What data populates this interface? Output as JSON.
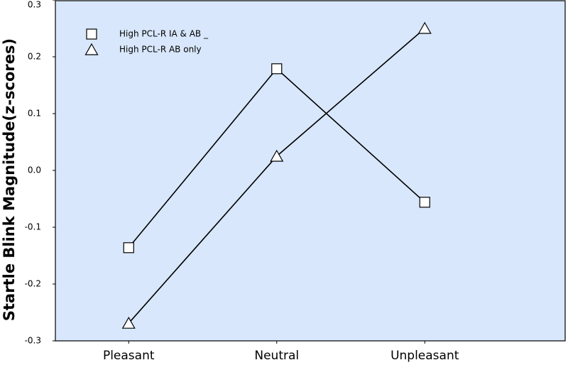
{
  "chart_data": {
    "type": "line",
    "y_label": "Startle Blink Magnitude(z-scores)",
    "categories": [
      "Pleasant",
      "Neutral",
      "Unpleasant"
    ],
    "series": [
      {
        "name": "High PCL-R IA & AB _",
        "color": "#000000",
        "marker": "square",
        "values": [
          -0.136,
          0.179,
          -0.056
        ]
      },
      {
        "name": "High PCL-R AB only",
        "color": "#000000",
        "marker": "triangle",
        "values": [
          -0.269,
          0.025,
          0.25
        ]
      }
    ],
    "ylim": [
      -0.3,
      0.3
    ],
    "yticks": [
      0.3,
      0.2,
      0.1,
      {
        "value": 0,
        "label": "0.0"
      },
      -0.1,
      -0.2,
      -0.3
    ],
    "plot_background": "#d8e7fb"
  }
}
